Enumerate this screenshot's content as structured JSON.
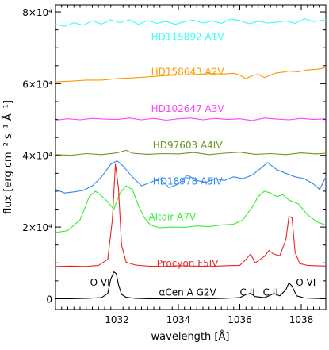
{
  "chart_data": {
    "type": "line",
    "xlabel": "wavelength [Å]",
    "ylabel": "flux [erg cm⁻² s⁻¹ Å⁻¹]",
    "xlim": [
      1030.0,
      1038.8
    ],
    "ylim": [
      -3000,
      82000
    ],
    "x_ticks": [
      {
        "value": 1032,
        "label": "1032"
      },
      {
        "value": 1034,
        "label": "1034"
      },
      {
        "value": 1036,
        "label": "1036"
      },
      {
        "value": 1038,
        "label": "1038"
      }
    ],
    "y_ticks": [
      {
        "value": 0,
        "label": "0"
      },
      {
        "value": 20000,
        "label": "2×10⁴"
      },
      {
        "value": 40000,
        "label": "4×10⁴"
      },
      {
        "value": 60000,
        "label": "6×10⁴"
      },
      {
        "value": 80000,
        "label": "8×10⁴"
      }
    ],
    "series": [
      {
        "name": "HD115892 A1V",
        "color": "#33ffff",
        "label_at": {
          "x": 1034.3,
          "y": 73000
        },
        "x": [
          1030.0,
          1030.3,
          1030.6,
          1030.9,
          1031.2,
          1031.5,
          1031.8,
          1032.1,
          1032.4,
          1032.7,
          1033.0,
          1033.3,
          1033.6,
          1033.9,
          1034.2,
          1034.5,
          1034.8,
          1035.1,
          1035.4,
          1035.7,
          1036.0,
          1036.3,
          1036.6,
          1036.9,
          1037.2,
          1037.5,
          1037.8,
          1038.1,
          1038.4,
          1038.8
        ],
        "y": [
          76500,
          76000,
          77000,
          76300,
          77500,
          76600,
          77800,
          77000,
          77800,
          76500,
          77600,
          76800,
          77400,
          76500,
          77300,
          77700,
          76900,
          77500,
          76800,
          78000,
          77600,
          76700,
          77400,
          76900,
          77100,
          77500,
          76800,
          78100,
          77300,
          77800
        ]
      },
      {
        "name": "HD158643 A2V",
        "color": "#ff9900",
        "label_at": {
          "x": 1034.3,
          "y": 63300
        },
        "x": [
          1030.0,
          1030.5,
          1031.0,
          1031.5,
          1032.0,
          1032.5,
          1033.0,
          1033.5,
          1034.0,
          1034.5,
          1035.0,
          1035.5,
          1035.8,
          1036.0,
          1036.2,
          1036.4,
          1036.6,
          1036.8,
          1037.0,
          1037.2,
          1037.4,
          1037.6,
          1037.9,
          1038.2,
          1038.5,
          1038.8
        ],
        "y": [
          60500,
          60700,
          61000,
          61000,
          61400,
          61600,
          61900,
          62200,
          62400,
          62500,
          62800,
          62700,
          62900,
          62400,
          61400,
          62200,
          62600,
          61700,
          62400,
          63000,
          63200,
          63500,
          63300,
          63800,
          64000,
          64400
        ]
      },
      {
        "name": "HD102647 A3V",
        "color": "#ff44ff",
        "label_at": {
          "x": 1034.3,
          "y": 53000
        },
        "x": [
          1030.0,
          1030.4,
          1030.8,
          1031.2,
          1031.6,
          1032.0,
          1032.4,
          1032.8,
          1033.2,
          1033.6,
          1034.0,
          1034.4,
          1034.8,
          1035.2,
          1035.6,
          1036.0,
          1036.4,
          1036.8,
          1037.2,
          1037.6,
          1038.0,
          1038.4,
          1038.8
        ],
        "y": [
          49800,
          50200,
          49900,
          50300,
          50100,
          50000,
          50400,
          49900,
          50300,
          49800,
          50200,
          50400,
          49900,
          50300,
          50000,
          50200,
          49700,
          50400,
          50100,
          49900,
          50300,
          50000,
          50200
        ]
      },
      {
        "name": "HD97603 A4IV",
        "color": "#669922",
        "label_at": {
          "x": 1034.3,
          "y": 42800
        },
        "x": [
          1030.0,
          1030.5,
          1031.0,
          1031.5,
          1032.0,
          1032.3,
          1032.5,
          1033.0,
          1033.5,
          1034.0,
          1034.5,
          1035.0,
          1035.5,
          1036.0,
          1036.5,
          1037.0,
          1037.5,
          1038.0,
          1038.5,
          1038.8
        ],
        "y": [
          40200,
          40000,
          40500,
          40200,
          40700,
          41400,
          40600,
          40300,
          40500,
          40400,
          40800,
          40200,
          40600,
          40900,
          40300,
          40500,
          40200,
          40700,
          40400,
          40600
        ]
      },
      {
        "name": "HD18978 A5IV",
        "color": "#3388ee",
        "label_at": {
          "x": 1034.3,
          "y": 32800
        },
        "x": [
          1030.0,
          1030.3,
          1030.6,
          1030.9,
          1031.2,
          1031.5,
          1031.8,
          1032.0,
          1032.2,
          1032.5,
          1032.8,
          1033.1,
          1033.4,
          1033.7,
          1034.0,
          1034.3,
          1034.6,
          1034.9,
          1035.2,
          1035.5,
          1035.8,
          1036.1,
          1036.4,
          1036.7,
          1036.9,
          1037.2,
          1037.5,
          1037.8,
          1038.1,
          1038.4,
          1038.6,
          1038.8
        ],
        "y": [
          30500,
          29500,
          29800,
          30200,
          31500,
          34000,
          37500,
          38500,
          37000,
          34000,
          31500,
          32500,
          33500,
          31000,
          32000,
          34500,
          33000,
          32500,
          33500,
          33000,
          34000,
          33500,
          34500,
          36500,
          38000,
          36000,
          35000,
          34000,
          33500,
          32000,
          30500,
          34000
        ]
      },
      {
        "name": "Altair A7V",
        "color": "#33ee33",
        "label_at": {
          "x": 1033.8,
          "y": 22800
        },
        "x": [
          1030.0,
          1030.4,
          1030.8,
          1031.1,
          1031.3,
          1031.6,
          1031.9,
          1032.1,
          1032.3,
          1032.5,
          1032.7,
          1032.9,
          1033.1,
          1033.4,
          1033.8,
          1034.2,
          1034.6,
          1035.0,
          1035.4,
          1035.8,
          1036.1,
          1036.4,
          1036.6,
          1036.8,
          1037.0,
          1037.2,
          1037.4,
          1037.6,
          1037.9,
          1038.2,
          1038.5,
          1038.8
        ],
        "y": [
          18500,
          19000,
          22000,
          28500,
          30000,
          28000,
          25000,
          29500,
          31500,
          30500,
          26000,
          22500,
          20500,
          19800,
          20000,
          19900,
          20300,
          20100,
          20600,
          20800,
          22000,
          25500,
          28500,
          30000,
          29500,
          28500,
          29000,
          27500,
          26500,
          23500,
          21500,
          20500
        ]
      },
      {
        "name": "Procyon F5IV",
        "color": "#ee2222",
        "label_at": {
          "x": 1034.3,
          "y": 9800
        },
        "x": [
          1030.0,
          1030.5,
          1031.0,
          1031.4,
          1031.7,
          1031.85,
          1031.95,
          1032.05,
          1032.15,
          1032.3,
          1032.6,
          1033.0,
          1033.5,
          1034.0,
          1034.5,
          1035.0,
          1035.5,
          1036.0,
          1036.2,
          1036.35,
          1036.5,
          1036.8,
          1036.95,
          1037.1,
          1037.3,
          1037.5,
          1037.6,
          1037.7,
          1037.8,
          1037.95,
          1038.2,
          1038.5,
          1038.8
        ],
        "y": [
          9000,
          9100,
          9000,
          9300,
          11000,
          22000,
          37500,
          31000,
          15000,
          10200,
          9400,
          9100,
          9000,
          9200,
          9100,
          9000,
          9200,
          9300,
          11000,
          12500,
          10000,
          11800,
          13500,
          12500,
          12000,
          16500,
          23000,
          22500,
          13000,
          9800,
          9300,
          9200,
          9100
        ]
      },
      {
        "name": "αCen A G2V",
        "color": "#000000",
        "label_at": {
          "x": 1034.3,
          "y": 1800
        },
        "x": [
          1030.0,
          1030.5,
          1031.0,
          1031.5,
          1031.7,
          1031.8,
          1031.9,
          1031.98,
          1032.05,
          1032.15,
          1032.3,
          1032.6,
          1033.0,
          1033.5,
          1034.0,
          1034.5,
          1035.0,
          1035.5,
          1036.0,
          1036.2,
          1036.35,
          1036.5,
          1036.8,
          1037.0,
          1037.1,
          1037.3,
          1037.5,
          1037.6,
          1037.7,
          1037.85,
          1038.1,
          1038.4,
          1038.8
        ],
        "y": [
          0,
          0,
          100,
          300,
          1500,
          5500,
          7500,
          7000,
          4000,
          1200,
          400,
          100,
          0,
          0,
          0,
          50,
          0,
          100,
          300,
          1200,
          1500,
          600,
          300,
          1000,
          1500,
          800,
          2500,
          4500,
          3500,
          800,
          200,
          100,
          0
        ]
      }
    ],
    "annotations": [
      {
        "text": "O VI",
        "x": 1031.45,
        "y": 4500
      },
      {
        "text": "C II",
        "x": 1036.25,
        "y": 1800
      },
      {
        "text": "C II",
        "x": 1037.0,
        "y": 1800
      },
      {
        "text": "O VI",
        "x": 1038.15,
        "y": 4500
      }
    ]
  }
}
